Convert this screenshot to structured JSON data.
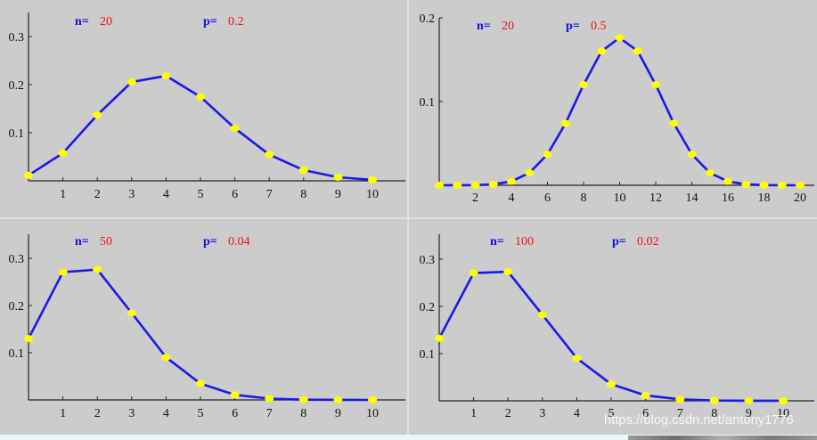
{
  "page": {
    "watermark": "https://blog.csdn.net/antony1776",
    "colors": {
      "background": "#cccccc",
      "line": "#1a1ae6",
      "marker": "#ffff00",
      "param_label": "#1010e0",
      "param_value": "#ee1111",
      "axis": "#222222"
    }
  },
  "panels": [
    {
      "n_label": "n=",
      "n_value": "20",
      "p_label": "p=",
      "p_value": "0.2",
      "yticks": [
        "0.1",
        "0.2",
        "0.3"
      ],
      "xticks": [
        "1",
        "2",
        "3",
        "4",
        "5",
        "6",
        "7",
        "8",
        "9",
        "10"
      ]
    },
    {
      "n_label": "n=",
      "n_value": "20",
      "p_label": "p=",
      "p_value": "0.5",
      "yticks": [
        "0.1",
        "0.2"
      ],
      "xticks": [
        "2",
        "4",
        "6",
        "8",
        "10",
        "12",
        "14",
        "16",
        "18",
        "20"
      ]
    },
    {
      "n_label": "n=",
      "n_value": "50",
      "p_label": "p=",
      "p_value": "0.04",
      "yticks": [
        "0.1",
        "0.2",
        "0.3"
      ],
      "xticks": [
        "1",
        "2",
        "3",
        "4",
        "5",
        "6",
        "7",
        "8",
        "9",
        "10"
      ]
    },
    {
      "n_label": "n=",
      "n_value": "100",
      "p_label": "p=",
      "p_value": "0.02",
      "yticks": [
        "0.1",
        "0.2",
        "0.3"
      ],
      "xticks": [
        "1",
        "2",
        "3",
        "4",
        "5",
        "6",
        "7",
        "8",
        "9",
        "10"
      ]
    }
  ],
  "chart_data": [
    {
      "type": "line",
      "title": "n= 20   p= 0.2",
      "xlabel": "",
      "ylabel": "",
      "x": [
        0,
        1,
        2,
        3,
        4,
        5,
        6,
        7,
        8,
        9,
        10
      ],
      "values": [
        0.0115,
        0.0576,
        0.1369,
        0.2054,
        0.2182,
        0.1746,
        0.1091,
        0.0545,
        0.0222,
        0.0074,
        0.002
      ],
      "xlim": [
        0,
        11
      ],
      "ylim": [
        0,
        0.35
      ],
      "yticks": [
        0.1,
        0.2,
        0.3
      ],
      "xticks": [
        1,
        2,
        3,
        4,
        5,
        6,
        7,
        8,
        9,
        10
      ],
      "markers": true,
      "grid": false,
      "legend": null
    },
    {
      "type": "line",
      "title": "n= 20   p= 0.5",
      "xlabel": "",
      "ylabel": "",
      "x": [
        0,
        1,
        2,
        3,
        4,
        5,
        6,
        7,
        8,
        9,
        10,
        11,
        12,
        13,
        14,
        15,
        16,
        17,
        18,
        19,
        20
      ],
      "values": [
        1e-06,
        2e-05,
        0.0002,
        0.0011,
        0.0046,
        0.0148,
        0.037,
        0.0739,
        0.1201,
        0.1602,
        0.1762,
        0.1602,
        0.1201,
        0.0739,
        0.037,
        0.0148,
        0.0046,
        0.0011,
        0.0002,
        2e-05,
        1e-06
      ],
      "xlim": [
        0,
        21
      ],
      "ylim": [
        0,
        0.2
      ],
      "yticks": [
        0.1,
        0.2
      ],
      "xticks": [
        2,
        4,
        6,
        8,
        10,
        12,
        14,
        16,
        18,
        20
      ],
      "markers": true,
      "grid": false,
      "legend": null
    },
    {
      "type": "line",
      "title": "n= 50   p= 0.04",
      "xlabel": "",
      "ylabel": "",
      "x": [
        0,
        1,
        2,
        3,
        4,
        5,
        6,
        7,
        8,
        9,
        10
      ],
      "values": [
        0.1299,
        0.2706,
        0.2762,
        0.1842,
        0.0902,
        0.0346,
        0.0108,
        0.0028,
        0.0006,
        0.0001,
        2e-05
      ],
      "xlim": [
        0,
        11
      ],
      "ylim": [
        0,
        0.35
      ],
      "yticks": [
        0.1,
        0.2,
        0.3
      ],
      "xticks": [
        1,
        2,
        3,
        4,
        5,
        6,
        7,
        8,
        9,
        10
      ],
      "markers": true,
      "grid": false,
      "legend": null
    },
    {
      "type": "line",
      "title": "n= 100   p= 0.02",
      "xlabel": "",
      "ylabel": "",
      "x": [
        0,
        1,
        2,
        3,
        4,
        5,
        6,
        7,
        8,
        9,
        10
      ],
      "values": [
        0.1326,
        0.2707,
        0.2734,
        0.1823,
        0.0902,
        0.0353,
        0.0114,
        0.0031,
        0.0007,
        0.0001,
        3e-05
      ],
      "xlim": [
        0,
        11
      ],
      "ylim": [
        0,
        0.35
      ],
      "yticks": [
        0.1,
        0.2,
        0.3
      ],
      "xticks": [
        1,
        2,
        3,
        4,
        5,
        6,
        7,
        8,
        9,
        10
      ],
      "markers": true,
      "grid": false,
      "legend": null
    }
  ]
}
